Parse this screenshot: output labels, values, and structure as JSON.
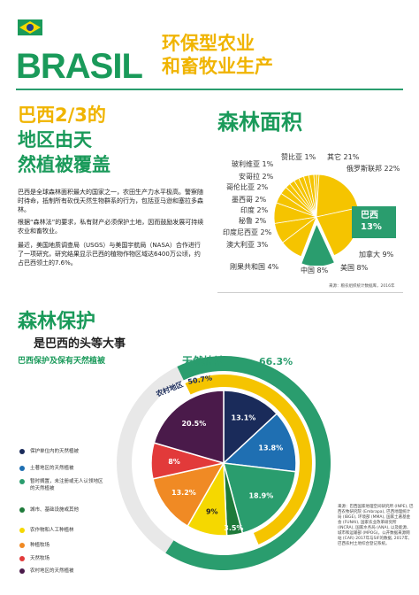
{
  "header": {
    "logo": "BRASIL",
    "title_line1": "环保型农业",
    "title_line2": "和畜牧业生产"
  },
  "left": {
    "heading_line1": "巴西2/3的",
    "heading_line2": "地区由天",
    "heading_line3": "然植被覆盖",
    "para1": "巴西是全球森林面积最大的国家之一，农田生产力水平极高。警察随时待命，抵制所有砍伐天然生物群系的行为，包括亚马逊和塞拉多森林。",
    "para2": "根据“森林法”的要求，私有财产必须保护土地，因而鼓励发展可持续农业和畜牧业。",
    "para3": "最近，美国地质调查局（USGS）与美国宇航局（NASA）合作进行了一项研究，研究结果显示巴西的植物作物区域达6400万公顷，约占巴西领土的7.6%。"
  },
  "forest_pie": {
    "title": "森林面积",
    "source": "来源：粮农组织统计数据库，2016年",
    "slices": [
      {
        "label": "赞比亚",
        "value": "1%"
      },
      {
        "label": "其它",
        "value": "21%"
      },
      {
        "label": "俄罗斯联邦",
        "value": "22%"
      },
      {
        "label": "巴西",
        "value": "13%"
      },
      {
        "label": "加拿大",
        "value": "9%"
      },
      {
        "label": "美国",
        "value": "8%"
      },
      {
        "label": "中国",
        "value": "8%"
      },
      {
        "label": "刚果共和国",
        "value": "4%"
      },
      {
        "label": "澳大利亚",
        "value": "3%"
      },
      {
        "label": "印度尼西亚",
        "value": "2%"
      },
      {
        "label": "秘鲁",
        "value": "2%"
      },
      {
        "label": "印度",
        "value": "2%"
      },
      {
        "label": "墨西哥",
        "value": "2%"
      },
      {
        "label": "哥伦比亚",
        "value": "2%"
      },
      {
        "label": "安哥拉",
        "value": "2%"
      },
      {
        "label": "玻利维亚",
        "value": "1%"
      }
    ],
    "colors": {
      "yellow": "#f5c400",
      "green": "#2a9d6e"
    }
  },
  "protection": {
    "title": "森林保护",
    "subtitle": "是巴西的头等大事",
    "subsub": "巴西保护及保有天然植被",
    "outer_label": "天然植被",
    "outer_value": "66.3%",
    "inner_label": "农村地区",
    "inner_value": "50.7%",
    "legend": [
      {
        "label": "保护单位内的天然植被",
        "color": "#1a2b5a"
      },
      {
        "label": "土著地区的天然植被",
        "color": "#1f6fb2"
      },
      {
        "label": "暂时搁置，未注册或无人认领地区的天然植被",
        "color": "#2a9d6e"
      },
      {
        "label": "城市、基础设施或其他",
        "color": "#1e7a3a"
      },
      {
        "label": "农作物和人工种植林",
        "color": "#f5d800"
      },
      {
        "label": "种植牧场",
        "color": "#f08a24"
      },
      {
        "label": "天然牧场",
        "color": "#e23a3a"
      },
      {
        "label": "农村地区的天然植被",
        "color": "#4a1a4a"
      }
    ],
    "segments": [
      "13.1%",
      "13.8%",
      "18.9%",
      "3.5%",
      "9%",
      "13.2%",
      "8%",
      "20.5%"
    ],
    "source": "来源：巴西国家地理空间研究所 (INPE), 巴西农牧研究院 (Embrapa), 巴西地理统计局 (IBGE), 环境部 (MMA), 国家土著基金会 (FUNAI), 国家农业改革研究所 (INCRA), 国家水务局 (ANA), 以及能源、城市和运输部 (MPOG)。公开数据来源网站 (CAR) 2017年与SIF的数据, 2017年, 巴西农村土地综合登记系统。"
  }
}
